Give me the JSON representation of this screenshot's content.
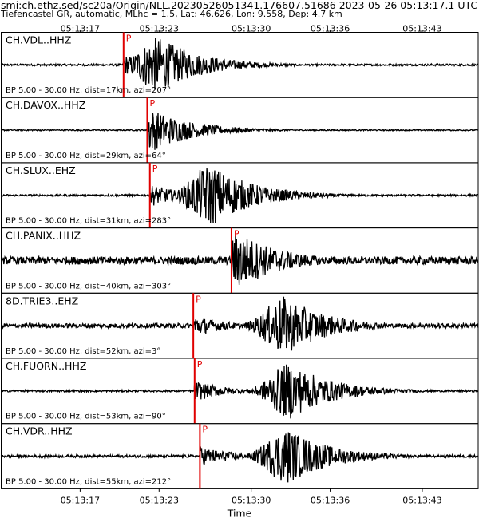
{
  "header": {
    "title": "smi:ch.ethz.sed/sc20a/Origin/NLL.20230526051341.176607.51686 2023-05-26 05:13:17.1 UTC",
    "subtitle": "Tiefencastel GR, automatic, MLhc = 1.5, Lat: 46.626, Lon: 9.558, Dep: 4.7 km"
  },
  "chart_data": {
    "type": "line",
    "xlabel": "Time",
    "xticks": [
      "05:13:17",
      "05:13:23",
      "05:13:30",
      "05:13:36",
      "05:13:43"
    ],
    "xtick_seconds": [
      17,
      23,
      30,
      36,
      43
    ],
    "xlim_seconds": [
      11,
      47.25
    ],
    "grid": false,
    "pick_color": "#e00000",
    "trace_color": "#000000",
    "series": [
      {
        "name": "CH.VDL..HHZ",
        "label": "BP 5.00 - 30.00 Hz, dist=17km, azi=207°",
        "pick": "P",
        "pick_time_s": 20.3,
        "peak_time_s": 23.0,
        "relative_peak": 0.9,
        "relative_noise": 0.03
      },
      {
        "name": "CH.DAVOX..HHZ",
        "label": "BP 5.00 - 30.00 Hz, dist=29km, azi=64°",
        "pick": "P",
        "pick_time_s": 22.1,
        "peak_time_s": 22.4,
        "relative_peak": 0.7,
        "relative_noise": 0.02
      },
      {
        "name": "CH.SLUX..EHZ",
        "label": "BP 5.00 - 30.00 Hz, dist=31km, azi=283°",
        "pick": "P",
        "pick_time_s": 22.3,
        "peak_time_s": 27.0,
        "relative_peak": 1.0,
        "relative_noise": 0.03
      },
      {
        "name": "CH.PANIX..HHZ",
        "label": "BP 5.00 - 30.00 Hz, dist=40km, azi=303°",
        "pick": "P",
        "pick_time_s": 28.5,
        "peak_time_s": 29.2,
        "relative_peak": 0.9,
        "relative_noise": 0.12
      },
      {
        "name": "8D.TRIE3..EHZ",
        "label": "BP 5.00 - 30.00 Hz, dist=52km, azi=3°",
        "pick": "P",
        "pick_time_s": 25.6,
        "peak_time_s": 32.6,
        "relative_peak": 0.95,
        "relative_noise": 0.07
      },
      {
        "name": "CH.FUORN..HHZ",
        "label": "BP 5.00 - 30.00 Hz, dist=53km, azi=90°",
        "pick": "P",
        "pick_time_s": 25.7,
        "peak_time_s": 33.0,
        "relative_peak": 0.9,
        "relative_noise": 0.03
      },
      {
        "name": "CH.VDR..HHZ",
        "label": "BP 5.00 - 30.00 Hz, dist=55km, azi=212°",
        "pick": "P",
        "pick_time_s": 26.1,
        "peak_time_s": 32.8,
        "relative_peak": 0.9,
        "relative_noise": 0.04
      }
    ]
  }
}
